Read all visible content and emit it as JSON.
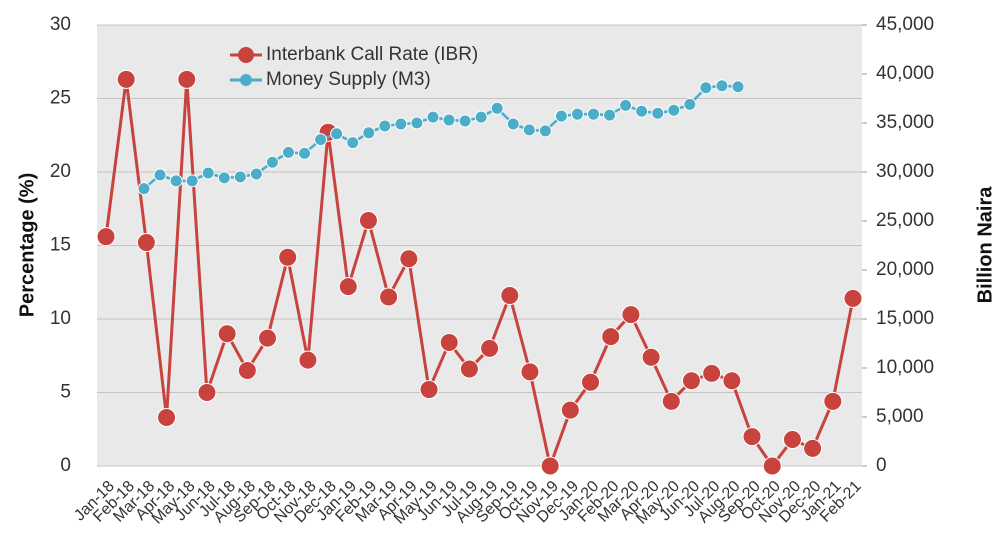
{
  "chart_data": {
    "type": "line",
    "categories": [
      "Jan-18",
      "Feb-18",
      "Mar-18",
      "Apr-18",
      "May-18",
      "Jun-18",
      "Jul-18",
      "Aug-18",
      "Sep-18",
      "Oct-18",
      "Nov-18",
      "Dec-18",
      "Jan-19",
      "Feb-19",
      "Mar-19",
      "Apr-19",
      "May-19",
      "Jun-19",
      "Jul-19",
      "Aug-19",
      "Sep-19",
      "Oct-19",
      "Nov-19",
      "Dec-19",
      "Jan-20",
      "Feb-20",
      "Mar-20",
      "Apr-20",
      "May-20",
      "Jun-20",
      "Jul-20",
      "Aug-20",
      "Sep-20",
      "Oct-20",
      "Nov-20",
      "Dec-20",
      "Jan-21",
      "Feb-21"
    ],
    "series": [
      {
        "name": "Interbank Call Rate (IBR)",
        "color": "#c8423e",
        "values": [
          15.6,
          26.3,
          15.2,
          3.3,
          26.3,
          5.0,
          9.0,
          6.5,
          8.7,
          14.2,
          7.2,
          22.7,
          12.2,
          16.7,
          11.5,
          14.1,
          5.2,
          8.4,
          6.6,
          8.0,
          11.6,
          6.4,
          0,
          3.8,
          5.7,
          8.8,
          10.3,
          7.4,
          4.4,
          5.8,
          6.3,
          5.8,
          2.0,
          0,
          1.8,
          1.2,
          4.4,
          11.4
        ]
      },
      {
        "name": "Money Supply (M3)",
        "color": "#4badc8",
        "axis": "y2",
        "values": [
          28300,
          29700,
          29100,
          29100,
          29900,
          29400,
          29500,
          29800,
          31000,
          32000,
          31900,
          33300,
          33900,
          33000,
          34000,
          34700,
          34900,
          35000,
          35600,
          35300,
          35200,
          35600,
          36500,
          34900,
          34300,
          34200,
          35700,
          35900,
          35900,
          35800,
          36800,
          36200,
          36000,
          36300,
          36900,
          38600,
          38800,
          38700
        ]
      }
    ],
    "ylabel": "Percentage (%)",
    "y2label": "Billion Naira",
    "ylim": [
      0,
      30
    ],
    "yticks": [
      0,
      5,
      10,
      15,
      20,
      25,
      30
    ],
    "y2lim": [
      0,
      45000
    ],
    "y2ticks": [
      0,
      {
        "value": 5000,
        "label": "5,000"
      },
      {
        "value": 10000,
        "label": "10,000"
      },
      {
        "value": 15000,
        "label": "15,000"
      },
      {
        "value": 20000,
        "label": "20,000"
      },
      {
        "value": 25000,
        "label": "25,000"
      },
      {
        "value": 30000,
        "label": "30,000"
      },
      {
        "value": 35000,
        "label": "35,000"
      },
      {
        "value": 40000,
        "label": "40,000"
      },
      {
        "value": 45000,
        "label": "45,000"
      }
    ],
    "grid": true
  }
}
